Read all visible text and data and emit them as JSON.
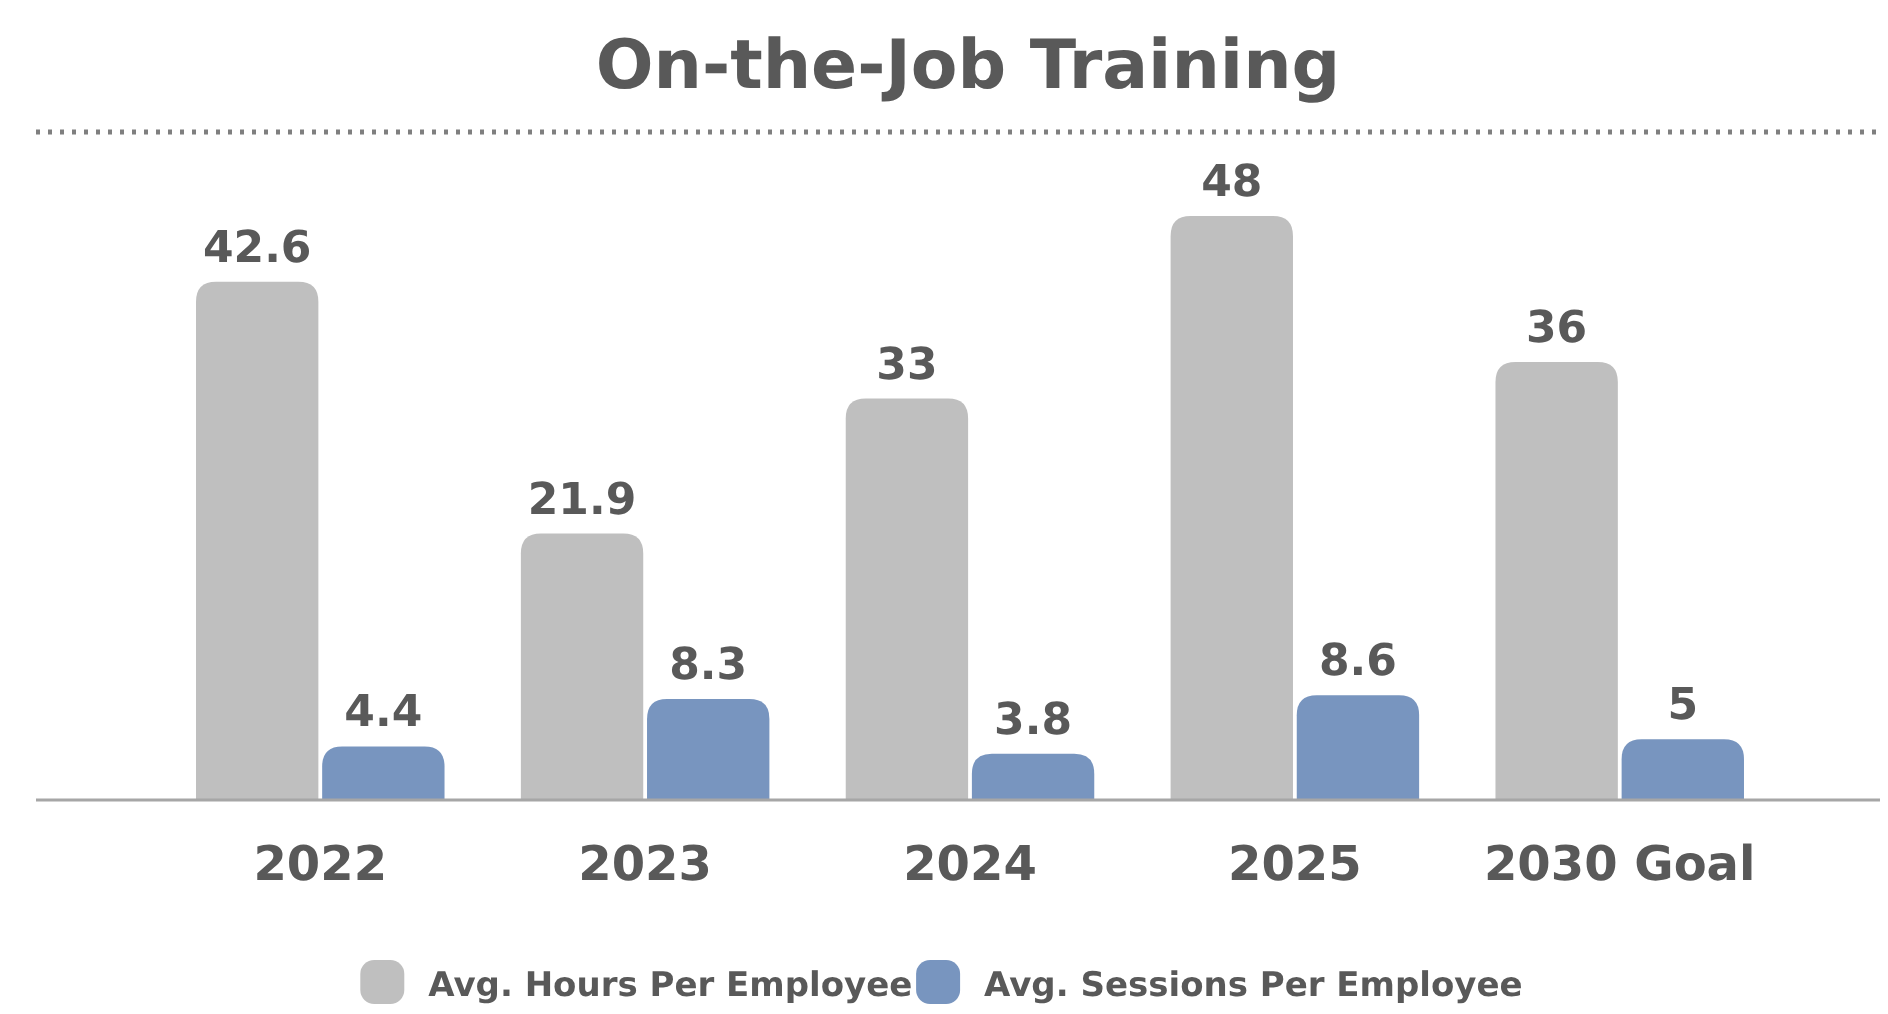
{
  "chart_data": {
    "type": "bar",
    "title": "On-the-Job Training",
    "categories": [
      "2022",
      "2023",
      "2024",
      "2025",
      "2030 Goal"
    ],
    "series": [
      {
        "name": "Avg. Hours Per Employee",
        "color": "#bfbfbf",
        "values": [
          42.6,
          21.9,
          33,
          48,
          36
        ]
      },
      {
        "name": "Avg. Sessions Per Employee",
        "color": "#7895bf",
        "values": [
          4.4,
          8.3,
          3.8,
          8.6,
          5
        ]
      }
    ],
    "data_labels": true,
    "legend": "bottom",
    "grid": false
  }
}
